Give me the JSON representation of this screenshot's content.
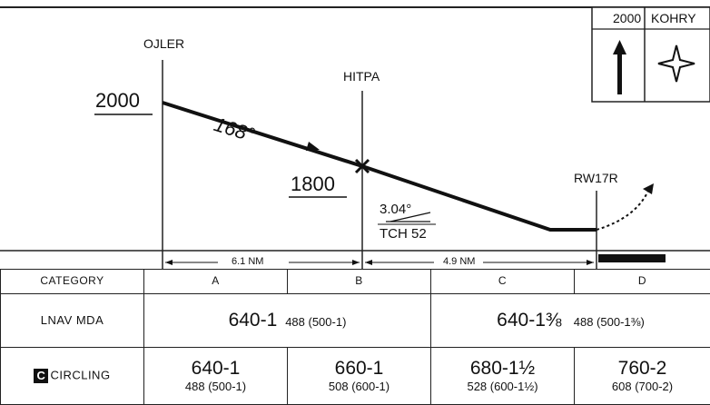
{
  "profile": {
    "fix_oller": "OJLER",
    "fix_hitpa": "HITPA",
    "fix_runway": "RW17R",
    "alt_start": "2000",
    "alt_step": "1800",
    "course": "168°",
    "glidepath": "3.04°",
    "tch": "TCH 52",
    "dist_1": "6.1 NM",
    "dist_2": "4.9 NM",
    "hold_alt": "2000",
    "hold_fix": "KOHRY"
  },
  "minimums": {
    "headers": [
      "CATEGORY",
      "A",
      "B",
      "C",
      "D"
    ],
    "lnav": {
      "label": "LNAV MDA",
      "ab_main": "640-1",
      "ab_sub": "488 (500-1)",
      "cd_main": "640-1⅜",
      "cd_sub": "488 (500-1⅜)"
    },
    "circling": {
      "badge": "C",
      "label": "CIRCLING",
      "cells": [
        {
          "main": "640-1",
          "sub": "488 (500-1)"
        },
        {
          "main": "660-1",
          "sub": "508 (600-1)"
        },
        {
          "main": "680-1½",
          "sub": "528 (600-1½)"
        },
        {
          "main": "760-2",
          "sub": "608 (700-2)"
        }
      ]
    }
  }
}
